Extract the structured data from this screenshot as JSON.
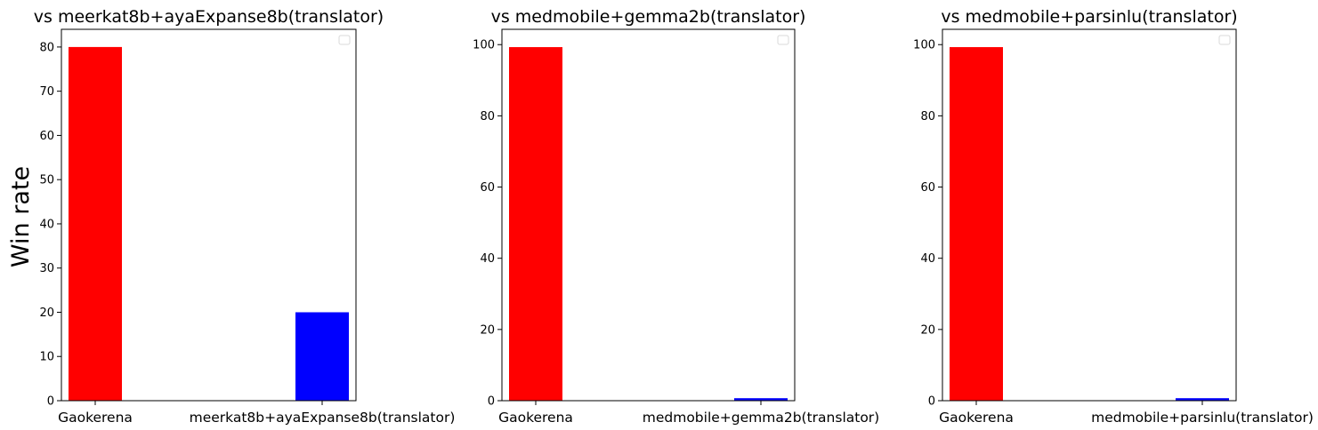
{
  "chart_data": [
    {
      "type": "bar",
      "title": "vs meerkat8b+ayaExpanse8b(translator)",
      "ylabel": "Win rate",
      "categories": [
        "Gaokerena",
        "meerkat8b+ayaExpanse8b(translator)"
      ],
      "values": [
        80,
        20
      ],
      "colors": [
        "#ff0000",
        "#0000ff"
      ],
      "ylim": [
        0,
        84
      ],
      "yticks": [
        "0",
        "10",
        "20",
        "30",
        "40",
        "50",
        "60",
        "70",
        "80"
      ],
      "legend": "empty, top-right"
    },
    {
      "type": "bar",
      "title": "vs medmobile+gemma2b(translator)",
      "ylabel": "",
      "categories": [
        "Gaokerena",
        "medmobile+gemma2b(translator)"
      ],
      "values": [
        99.3,
        0.7
      ],
      "colors": [
        "#ff0000",
        "#0000ff"
      ],
      "ylim": [
        0,
        104.3
      ],
      "yticks": [
        "0",
        "20",
        "40",
        "60",
        "80",
        "100"
      ],
      "legend": "empty, top-right"
    },
    {
      "type": "bar",
      "title": "vs medmobile+parsinlu(translator)",
      "ylabel": "",
      "categories": [
        "Gaokerena",
        "medmobile+parsinlu(translator)"
      ],
      "values": [
        99.3,
        0.7
      ],
      "colors": [
        "#ff0000",
        "#0000ff"
      ],
      "ylim": [
        0,
        104.3
      ],
      "yticks": [
        "0",
        "20",
        "40",
        "60",
        "80",
        "100"
      ],
      "legend": "empty, top-right"
    }
  ]
}
